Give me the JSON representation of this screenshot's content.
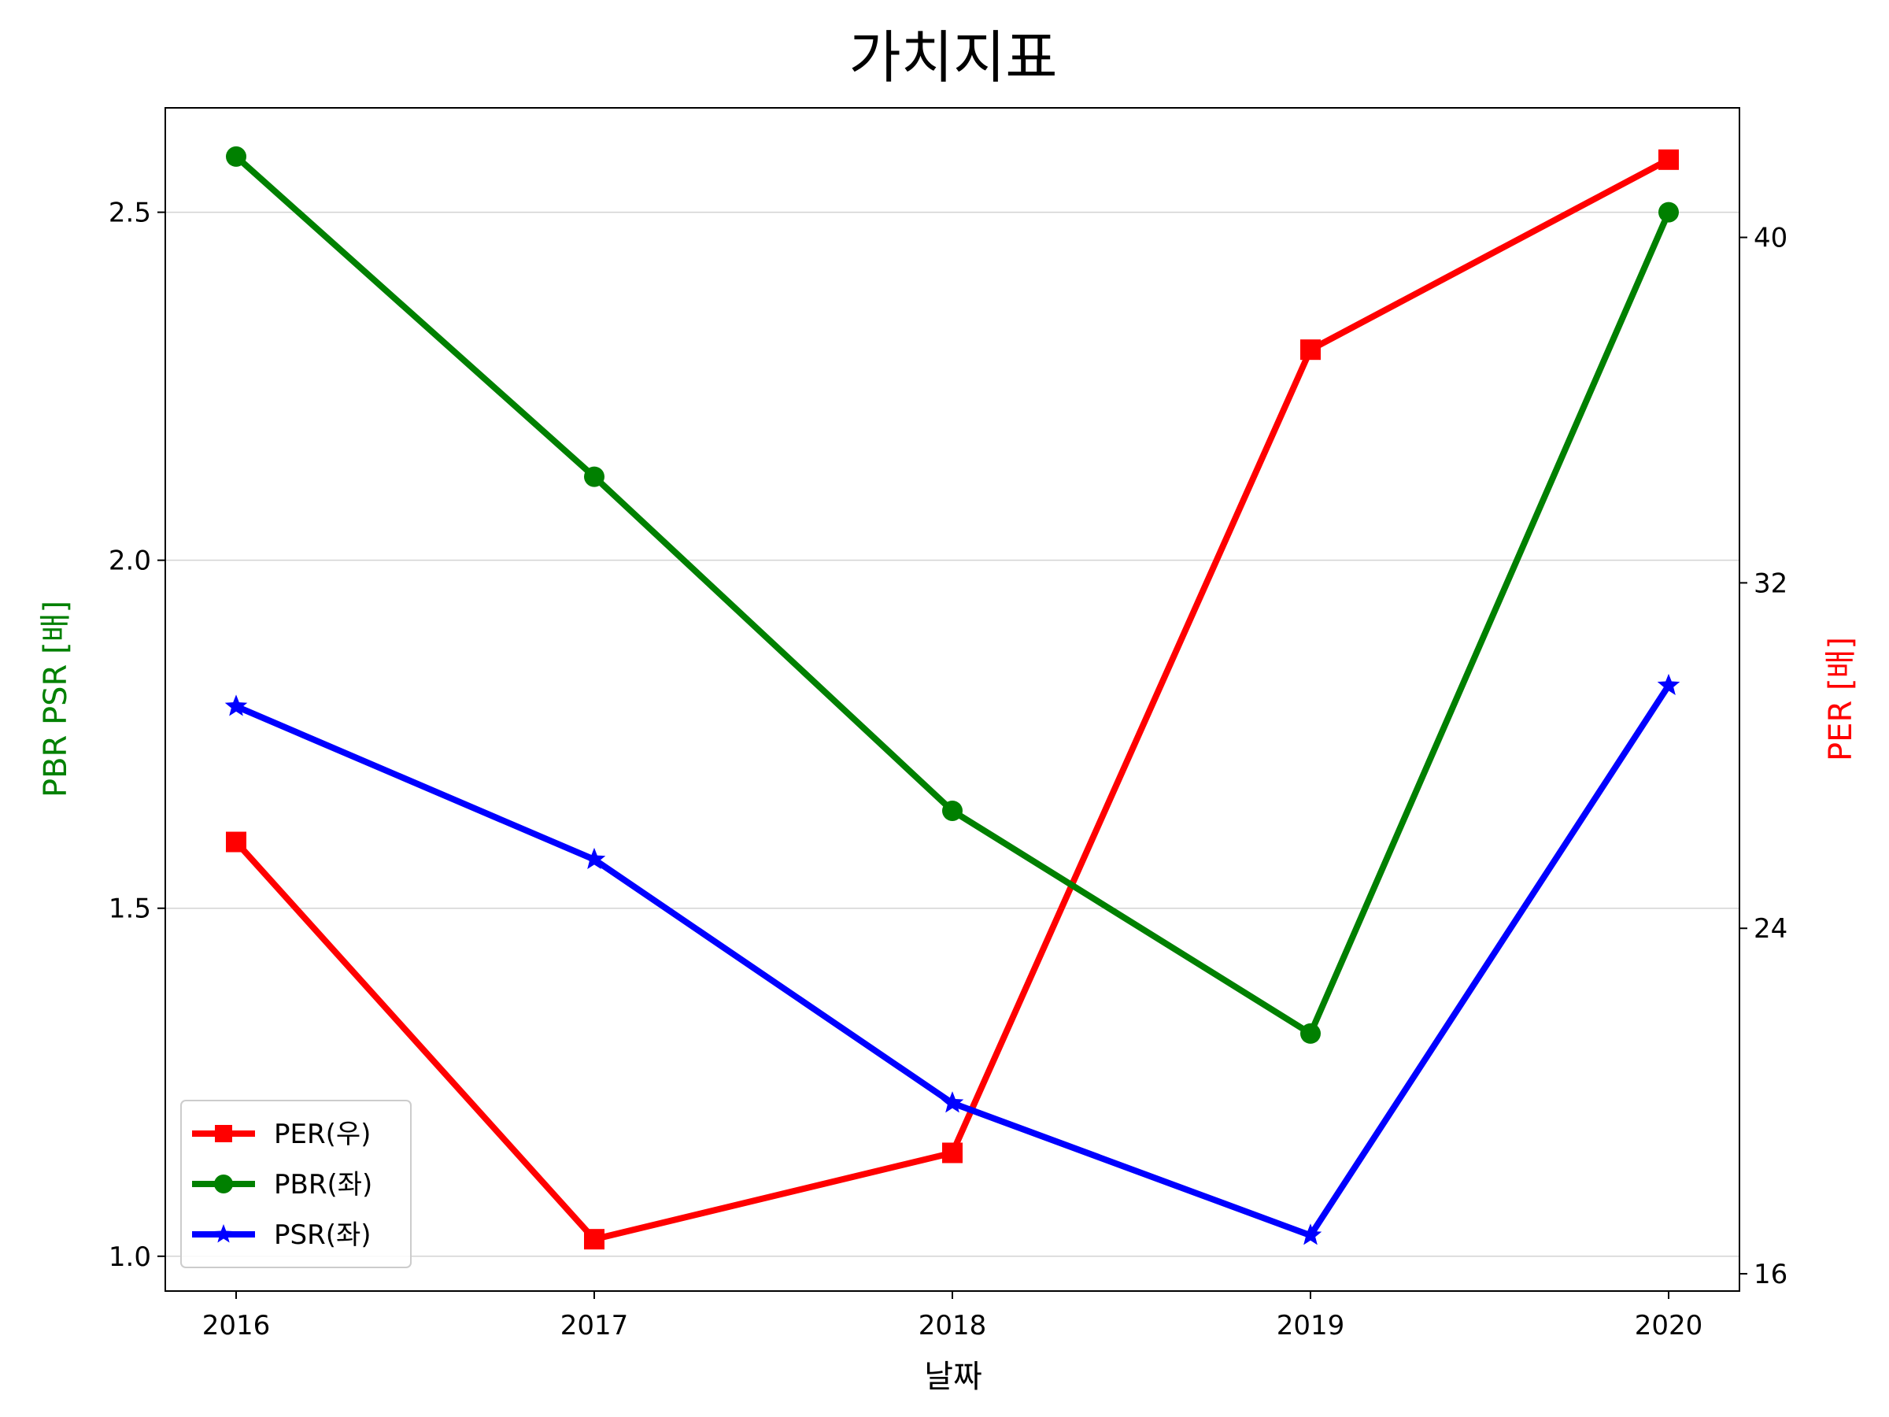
{
  "chart_data": {
    "type": "line",
    "title": "가치지표",
    "xlabel": "날짜",
    "ylabel_left": "PBR PSR [배]",
    "ylabel_right": "PER [배]",
    "ylabel_left_color": "#008000",
    "ylabel_right_color": "#ff0000",
    "categories": [
      "2016",
      "2017",
      "2018",
      "2019",
      "2020"
    ],
    "ylim_left": [
      0.95,
      2.65
    ],
    "ylim_right": [
      15.6,
      43.0
    ],
    "yticks_left": [
      "1.0",
      "1.5",
      "2.0",
      "2.5"
    ],
    "yticks_right": [
      "16",
      "24",
      "32",
      "40"
    ],
    "grid": "horizontal",
    "legend_position": "lower-left",
    "series": [
      {
        "name": "PER(우)",
        "axis": "right",
        "color": "#ff0000",
        "marker": "square",
        "values": [
          26.0,
          16.8,
          18.8,
          37.4,
          41.8
        ]
      },
      {
        "name": "PBR(좌)",
        "axis": "left",
        "color": "#008000",
        "marker": "circle",
        "values": [
          2.58,
          2.12,
          1.64,
          1.32,
          2.5
        ]
      },
      {
        "name": "PSR(좌)",
        "axis": "left",
        "color": "#0000ff",
        "marker": "star",
        "values": [
          1.79,
          1.57,
          1.22,
          1.03,
          1.82
        ]
      }
    ]
  }
}
